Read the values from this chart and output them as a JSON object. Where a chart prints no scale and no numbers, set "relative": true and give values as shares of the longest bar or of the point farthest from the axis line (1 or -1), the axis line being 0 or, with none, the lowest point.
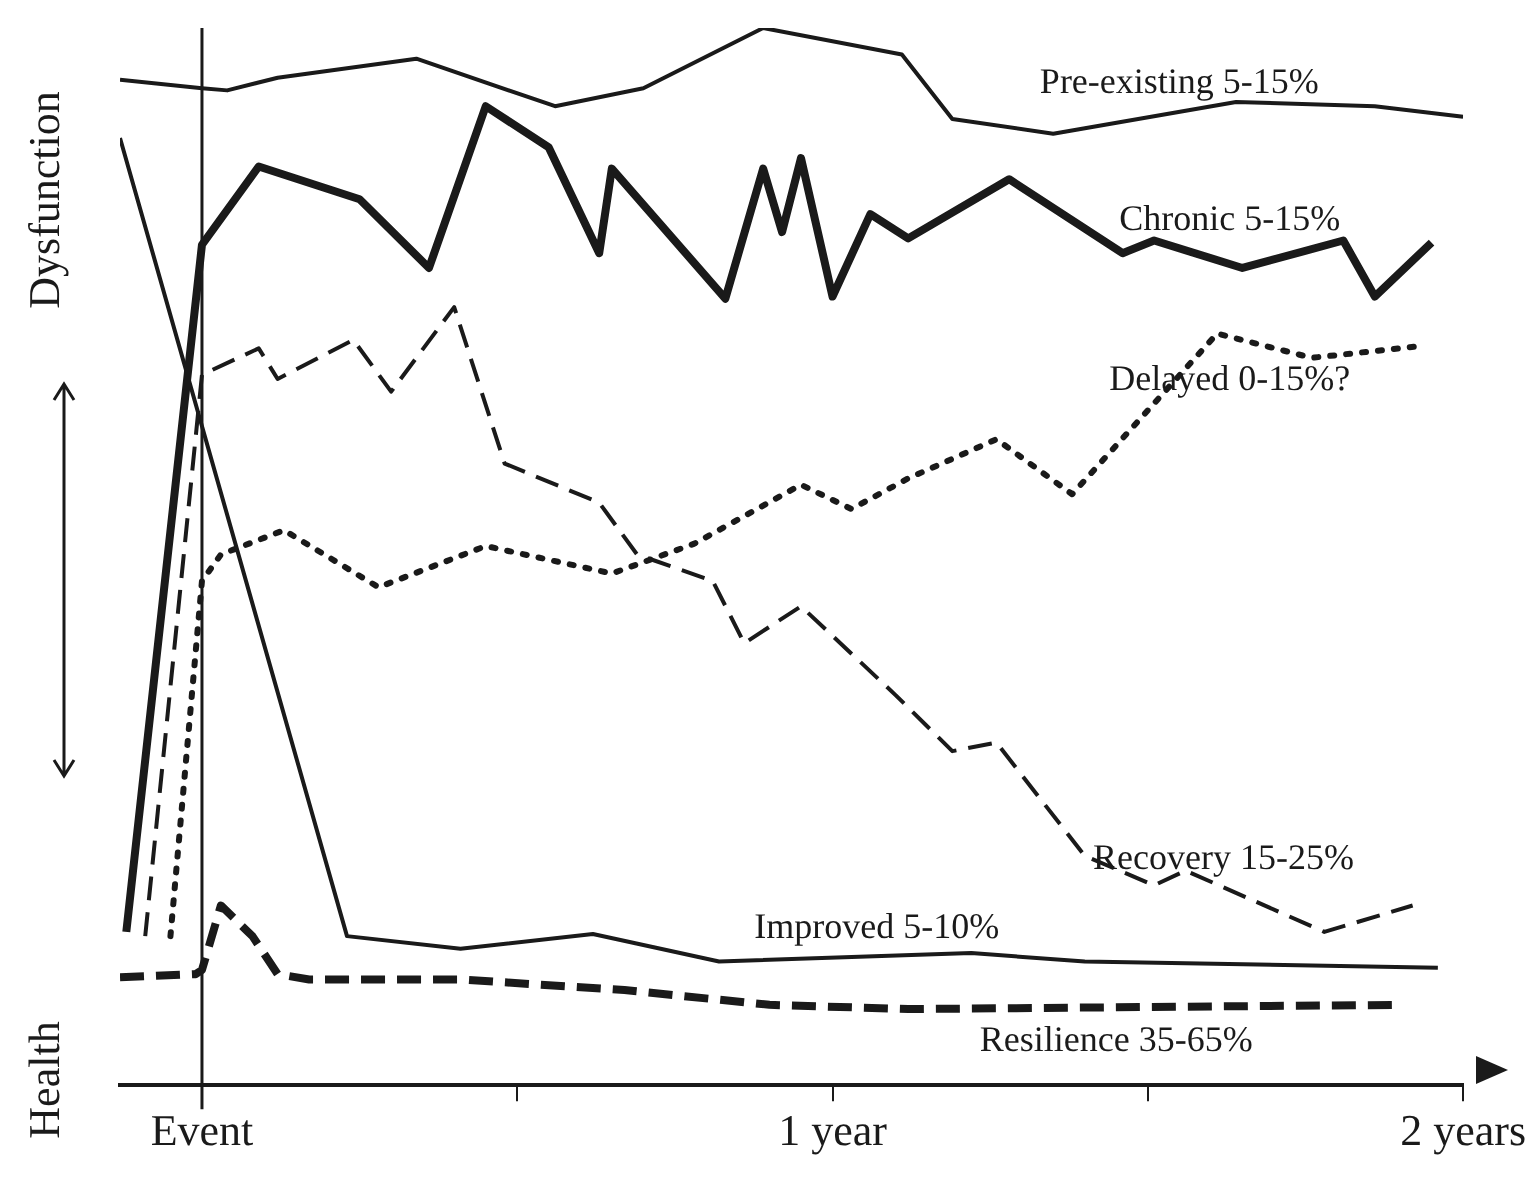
{
  "chart_data": {
    "type": "line",
    "relative": true,
    "xlim": [
      -0.13,
      2.0
    ],
    "xticks": [
      {
        "value": 0,
        "label": "Event"
      },
      {
        "value": 0.5,
        "label": null
      },
      {
        "value": 1,
        "label": "1 year"
      },
      {
        "value": 1.5,
        "label": null
      },
      {
        "value": 2,
        "label": "2 years"
      }
    ],
    "annotations": [
      "Dysfunction",
      "Health"
    ],
    "ref_lines": [
      {
        "axis": "x",
        "value": 0,
        "color": "#1a1a1a"
      }
    ],
    "grid": false,
    "legend": false,
    "marker": "none",
    "series": [
      {
        "name": "Pre-existing 5-15%",
        "color": "#1a1a1a",
        "line_style": "solid",
        "x": [
          -0.13,
          0,
          0.04,
          0.12,
          0.34,
          0.56,
          0.7,
          0.89,
          1.11,
          1.19,
          1.35,
          1.64,
          1.86,
          2.0
        ],
        "values": [
          0.951,
          0.943,
          0.941,
          0.953,
          0.971,
          0.926,
          0.943,
          1,
          0.975,
          0.914,
          0.9,
          0.93,
          0.926,
          0.916
        ]
      },
      {
        "name": "Chronic 5-15%",
        "color": "#1a1a1a",
        "line_style": "solid",
        "x": [
          -0.12,
          0,
          0.09,
          0.25,
          0.36,
          0.45,
          0.55,
          0.63,
          0.65,
          0.83,
          0.89,
          0.92,
          0.95,
          1.0,
          1.06,
          1.12,
          1.28,
          1.46,
          1.51,
          1.65,
          1.81,
          1.86,
          1.95
        ],
        "values": [
          0.145,
          0.795,
          0.869,
          0.838,
          0.773,
          0.926,
          0.887,
          0.787,
          0.867,
          0.744,
          0.867,
          0.807,
          0.877,
          0.746,
          0.824,
          0.801,
          0.857,
          0.787,
          0.799,
          0.773,
          0.799,
          0.746,
          0.797
        ]
      },
      {
        "name": "Delayed 0-15%?",
        "color": "#1a1a1a",
        "line_style": "dotted",
        "x": [
          -0.05,
          0,
          0.03,
          0.13,
          0.28,
          0.45,
          0.65,
          0.78,
          0.95,
          1.03,
          1.12,
          1.26,
          1.38,
          1.61,
          1.76,
          1.93
        ],
        "values": [
          0.141,
          0.477,
          0.502,
          0.525,
          0.471,
          0.51,
          0.484,
          0.512,
          0.568,
          0.545,
          0.574,
          0.611,
          0.559,
          0.711,
          0.688,
          0.699
        ]
      },
      {
        "name": "Recovery 15-25%",
        "color": "#1a1a1a",
        "line_style": "dashed",
        "x": [
          -0.09,
          0,
          0.09,
          0.12,
          0.24,
          0.3,
          0.4,
          0.48,
          0.63,
          0.69,
          0.81,
          0.86,
          0.95,
          1.1,
          1.19,
          1.26,
          1.4,
          1.51,
          1.56,
          1.78,
          1.92
        ],
        "values": [
          0.141,
          0.672,
          0.697,
          0.668,
          0.705,
          0.656,
          0.736,
          0.588,
          0.551,
          0.502,
          0.477,
          0.418,
          0.453,
          0.369,
          0.316,
          0.324,
          0.217,
          0.189,
          0.203,
          0.145,
          0.17
        ]
      },
      {
        "name": "Improved 5-10%",
        "color": "#1a1a1a",
        "line_style": "solid",
        "x": [
          -0.13,
          0.23,
          0.41,
          0.62,
          0.82,
          1.22,
          1.4,
          1.96
        ],
        "values": [
          0.896,
          0.141,
          0.129,
          0.143,
          0.117,
          0.125,
          0.117,
          0.111
        ]
      },
      {
        "name": "Resilience 35-65%",
        "color": "#1a1a1a",
        "line_style": "dashed",
        "x": [
          -0.13,
          -0.01,
          0,
          0.03,
          0.08,
          0.12,
          0.17,
          0.41,
          0.67,
          0.9,
          1.12,
          1.9
        ],
        "values": [
          0.102,
          0.105,
          0.109,
          0.17,
          0.141,
          0.105,
          0.1,
          0.1,
          0.09,
          0.076,
          0.072,
          0.076
        ]
      }
    ]
  }
}
